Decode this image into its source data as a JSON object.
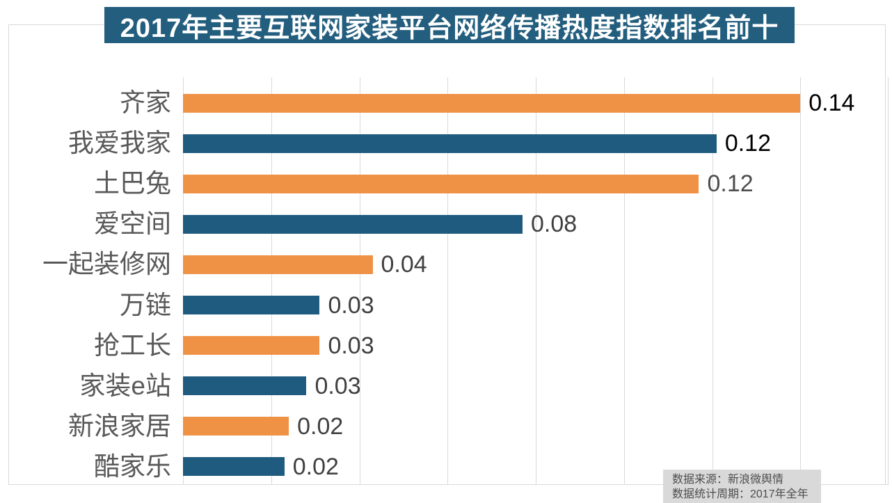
{
  "title": "2017年主要互联网家装平台网络传播热度指数排名前十",
  "colors": {
    "title_bg": "#235E7E",
    "title_text": "#FFFFFF",
    "orange": "#EF9245",
    "blue": "#1F5B7E",
    "grid": "#D9D9D9",
    "container_border": "#D9D9D9",
    "category_label": "#595959",
    "footer_bg": "#D9D9D9",
    "footer_text": "#4D4D4D"
  },
  "chart_data": {
    "type": "bar",
    "orientation": "horizontal",
    "title": "2017年主要互联网家装平台网络传播热度指数排名前十",
    "categories": [
      "齐家",
      "我爱我家",
      "土巴兔",
      "爱空间",
      "一起装修网",
      "万链",
      "抢工长",
      "家装e站",
      "新浪家居",
      "酷家乐"
    ],
    "values": [
      0.14,
      0.121,
      0.117,
      0.077,
      0.043,
      0.031,
      0.031,
      0.028,
      0.024,
      0.023
    ],
    "value_labels": [
      "0.14",
      "0.12",
      "0.12",
      "0.08",
      "0.04",
      "0.03",
      "0.03",
      "0.03",
      "0.02",
      "0.02"
    ],
    "bar_colors": [
      "#EF9245",
      "#1F5B7E",
      "#EF9245",
      "#1F5B7E",
      "#EF9245",
      "#1F5B7E",
      "#EF9245",
      "#1F5B7E",
      "#EF9245",
      "#1F5B7E"
    ],
    "value_label_colors": [
      "#000000",
      "#000000",
      "#4D4D4D",
      "#404040",
      "#404040",
      "#404040",
      "#404040",
      "#404040",
      "#404040",
      "#404040"
    ],
    "xlabel": "",
    "ylabel": "",
    "xlim": [
      0,
      0.16
    ],
    "grid_step": 0.02,
    "grid": true,
    "legend": false
  },
  "footer": {
    "source_line": "数据来源：新浪微舆情",
    "period_line": "数据统计周期：2017年全年"
  }
}
